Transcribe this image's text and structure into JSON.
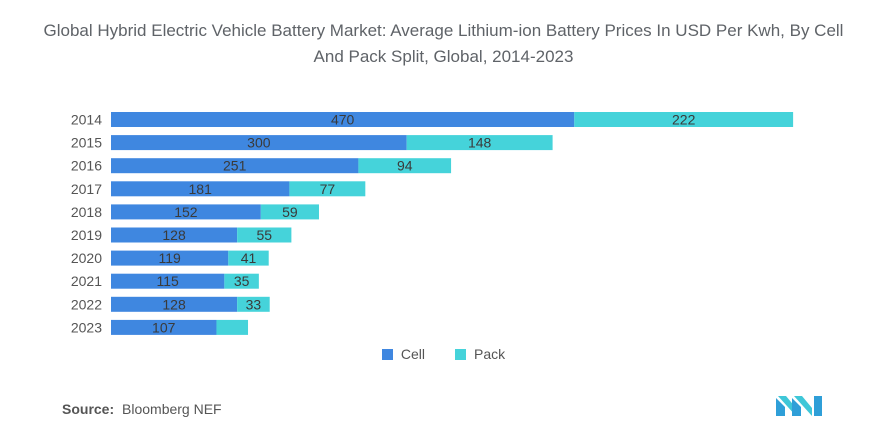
{
  "title": "Global Hybrid Electric Vehicle Battery Market: Average Lithium-ion Battery Prices In USD Per Kwh, By Cell And Pack Split, Global, 2014-2023",
  "source_label": "Source:",
  "source_text": "Bloomberg NEF",
  "colors": {
    "cell": "#3f87e0",
    "pack": "#45d3da"
  },
  "chart_data": {
    "type": "bar",
    "orientation": "horizontal",
    "stacked": true,
    "categories": [
      "2014",
      "2015",
      "2016",
      "2017",
      "2018",
      "2019",
      "2020",
      "2021",
      "2022",
      "2023"
    ],
    "series": [
      {
        "name": "Cell",
        "values": [
          470,
          300,
          251,
          181,
          152,
          128,
          119,
          115,
          128,
          107
        ]
      },
      {
        "name": "Pack",
        "values": [
          222,
          148,
          94,
          77,
          59,
          55,
          41,
          35,
          33,
          32
        ]
      }
    ],
    "data_labels": {
      "Cell": [
        "470",
        "300",
        "251",
        "181",
        "152",
        "128",
        "119",
        "115",
        "128",
        "107"
      ],
      "Pack": [
        "222",
        "148",
        "94",
        "77",
        "59",
        "55",
        "41",
        "35",
        "33",
        ""
      ]
    },
    "xlim": [
      0,
      700
    ],
    "grid": false,
    "legend_position": "bottom-center"
  }
}
